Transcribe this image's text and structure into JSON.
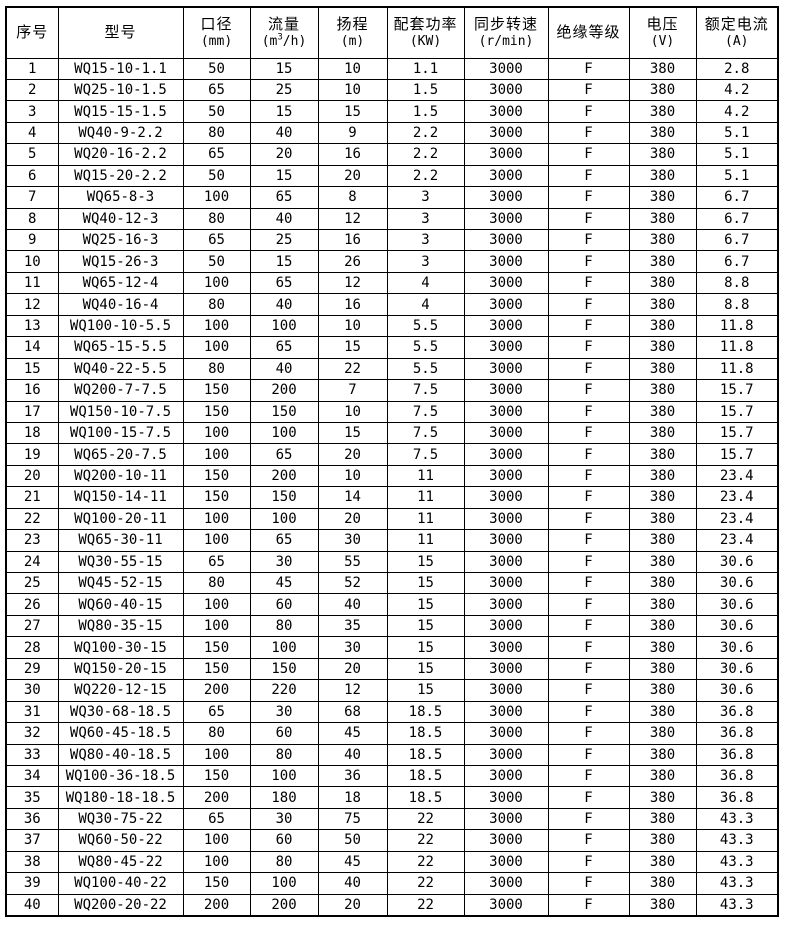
{
  "page": {
    "background_color": "#ffffff",
    "border_color": "#000000",
    "text_color": "#000000"
  },
  "table": {
    "columns": [
      {
        "id": "index",
        "label": "序号",
        "unit": null
      },
      {
        "id": "model",
        "label": "型号",
        "unit": null
      },
      {
        "id": "diameter",
        "label": "口径",
        "unit": "(mm)"
      },
      {
        "id": "flow",
        "label": "流量",
        "unit": {
          "pre": "(m",
          "sup": "3",
          "post": "/h)"
        }
      },
      {
        "id": "head",
        "label": "扬程",
        "unit": "(m)"
      },
      {
        "id": "power",
        "label": "配套功率",
        "unit": "(KW)"
      },
      {
        "id": "speed",
        "label": "同步转速",
        "unit": "(r/min)"
      },
      {
        "id": "insulation",
        "label": "绝缘等级",
        "unit": null
      },
      {
        "id": "voltage",
        "label": "电压",
        "unit": "(V)"
      },
      {
        "id": "current",
        "label": "额定电流",
        "unit": "(A)"
      }
    ],
    "rows": [
      [
        "1",
        "WQ15-10-1.1",
        "50",
        "15",
        "10",
        "1.1",
        "3000",
        "F",
        "380",
        "2.8"
      ],
      [
        "2",
        "WQ25-10-1.5",
        "65",
        "25",
        "10",
        "1.5",
        "3000",
        "F",
        "380",
        "4.2"
      ],
      [
        "3",
        "WQ15-15-1.5",
        "50",
        "15",
        "15",
        "1.5",
        "3000",
        "F",
        "380",
        "4.2"
      ],
      [
        "4",
        "WQ40-9-2.2",
        "80",
        "40",
        "9",
        "2.2",
        "3000",
        "F",
        "380",
        "5.1"
      ],
      [
        "5",
        "WQ20-16-2.2",
        "65",
        "20",
        "16",
        "2.2",
        "3000",
        "F",
        "380",
        "5.1"
      ],
      [
        "6",
        "WQ15-20-2.2",
        "50",
        "15",
        "20",
        "2.2",
        "3000",
        "F",
        "380",
        "5.1"
      ],
      [
        "7",
        "WQ65-8-3",
        "100",
        "65",
        "8",
        "3",
        "3000",
        "F",
        "380",
        "6.7"
      ],
      [
        "8",
        "WQ40-12-3",
        "80",
        "40",
        "12",
        "3",
        "3000",
        "F",
        "380",
        "6.7"
      ],
      [
        "9",
        "WQ25-16-3",
        "65",
        "25",
        "16",
        "3",
        "3000",
        "F",
        "380",
        "6.7"
      ],
      [
        "10",
        "WQ15-26-3",
        "50",
        "15",
        "26",
        "3",
        "3000",
        "F",
        "380",
        "6.7"
      ],
      [
        "11",
        "WQ65-12-4",
        "100",
        "65",
        "12",
        "4",
        "3000",
        "F",
        "380",
        "8.8"
      ],
      [
        "12",
        "WQ40-16-4",
        "80",
        "40",
        "16",
        "4",
        "3000",
        "F",
        "380",
        "8.8"
      ],
      [
        "13",
        "WQ100-10-5.5",
        "100",
        "100",
        "10",
        "5.5",
        "3000",
        "F",
        "380",
        "11.8"
      ],
      [
        "14",
        "WQ65-15-5.5",
        "100",
        "65",
        "15",
        "5.5",
        "3000",
        "F",
        "380",
        "11.8"
      ],
      [
        "15",
        "WQ40-22-5.5",
        "80",
        "40",
        "22",
        "5.5",
        "3000",
        "F",
        "380",
        "11.8"
      ],
      [
        "16",
        "WQ200-7-7.5",
        "150",
        "200",
        "7",
        "7.5",
        "3000",
        "F",
        "380",
        "15.7"
      ],
      [
        "17",
        "WQ150-10-7.5",
        "150",
        "150",
        "10",
        "7.5",
        "3000",
        "F",
        "380",
        "15.7"
      ],
      [
        "18",
        "WQ100-15-7.5",
        "100",
        "100",
        "15",
        "7.5",
        "3000",
        "F",
        "380",
        "15.7"
      ],
      [
        "19",
        "WQ65-20-7.5",
        "100",
        "65",
        "20",
        "7.5",
        "3000",
        "F",
        "380",
        "15.7"
      ],
      [
        "20",
        "WQ200-10-11",
        "150",
        "200",
        "10",
        "11",
        "3000",
        "F",
        "380",
        "23.4"
      ],
      [
        "21",
        "WQ150-14-11",
        "150",
        "150",
        "14",
        "11",
        "3000",
        "F",
        "380",
        "23.4"
      ],
      [
        "22",
        "WQ100-20-11",
        "100",
        "100",
        "20",
        "11",
        "3000",
        "F",
        "380",
        "23.4"
      ],
      [
        "23",
        "WQ65-30-11",
        "100",
        "65",
        "30",
        "11",
        "3000",
        "F",
        "380",
        "23.4"
      ],
      [
        "24",
        "WQ30-55-15",
        "65",
        "30",
        "55",
        "15",
        "3000",
        "F",
        "380",
        "30.6"
      ],
      [
        "25",
        "WQ45-52-15",
        "80",
        "45",
        "52",
        "15",
        "3000",
        "F",
        "380",
        "30.6"
      ],
      [
        "26",
        "WQ60-40-15",
        "100",
        "60",
        "40",
        "15",
        "3000",
        "F",
        "380",
        "30.6"
      ],
      [
        "27",
        "WQ80-35-15",
        "100",
        "80",
        "35",
        "15",
        "3000",
        "F",
        "380",
        "30.6"
      ],
      [
        "28",
        "WQ100-30-15",
        "150",
        "100",
        "30",
        "15",
        "3000",
        "F",
        "380",
        "30.6"
      ],
      [
        "29",
        "WQ150-20-15",
        "150",
        "150",
        "20",
        "15",
        "3000",
        "F",
        "380",
        "30.6"
      ],
      [
        "30",
        "WQ220-12-15",
        "200",
        "220",
        "12",
        "15",
        "3000",
        "F",
        "380",
        "30.6"
      ],
      [
        "31",
        "WQ30-68-18.5",
        "65",
        "30",
        "68",
        "18.5",
        "3000",
        "F",
        "380",
        "36.8"
      ],
      [
        "32",
        "WQ60-45-18.5",
        "80",
        "60",
        "45",
        "18.5",
        "3000",
        "F",
        "380",
        "36.8"
      ],
      [
        "33",
        "WQ80-40-18.5",
        "100",
        "80",
        "40",
        "18.5",
        "3000",
        "F",
        "380",
        "36.8"
      ],
      [
        "34",
        "WQ100-36-18.5",
        "150",
        "100",
        "36",
        "18.5",
        "3000",
        "F",
        "380",
        "36.8"
      ],
      [
        "35",
        "WQ180-18-18.5",
        "200",
        "180",
        "18",
        "18.5",
        "3000",
        "F",
        "380",
        "36.8"
      ],
      [
        "36",
        "WQ30-75-22",
        "65",
        "30",
        "75",
        "22",
        "3000",
        "F",
        "380",
        "43.3"
      ],
      [
        "37",
        "WQ60-50-22",
        "100",
        "60",
        "50",
        "22",
        "3000",
        "F",
        "380",
        "43.3"
      ],
      [
        "38",
        "WQ80-45-22",
        "100",
        "80",
        "45",
        "22",
        "3000",
        "F",
        "380",
        "43.3"
      ],
      [
        "39",
        "WQ100-40-22",
        "150",
        "100",
        "40",
        "22",
        "3000",
        "F",
        "380",
        "43.3"
      ],
      [
        "40",
        "WQ200-20-22",
        "200",
        "200",
        "20",
        "22",
        "3000",
        "F",
        "380",
        "43.3"
      ]
    ]
  }
}
